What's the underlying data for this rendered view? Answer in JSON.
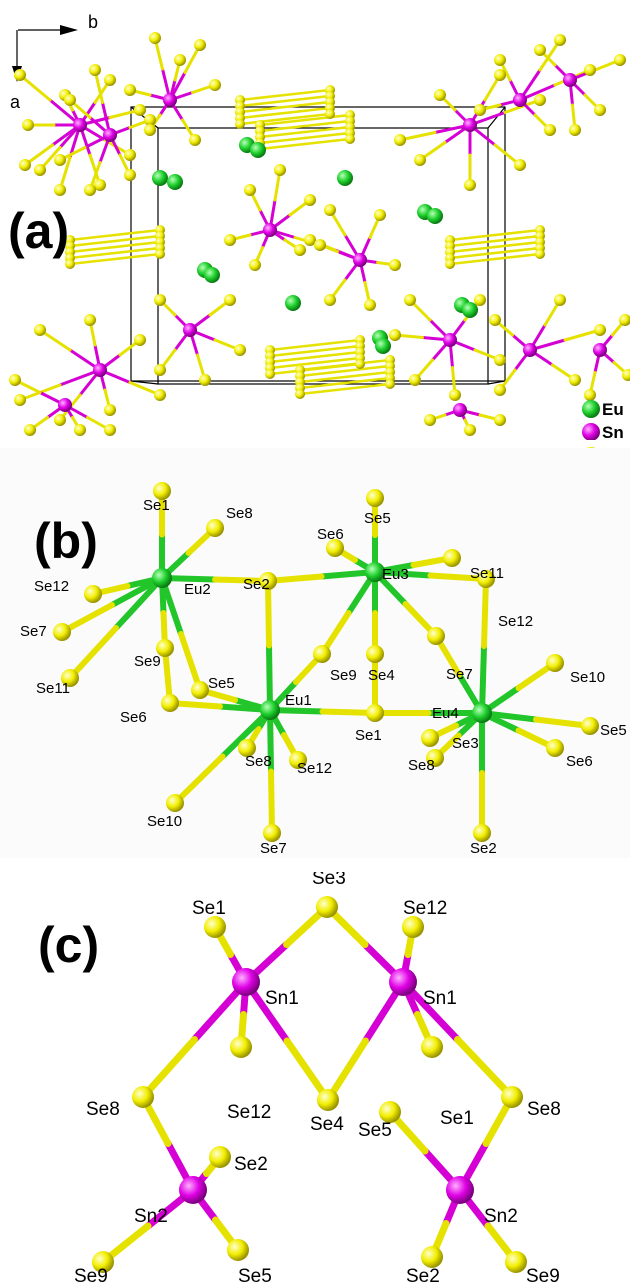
{
  "colors": {
    "eu": "#1fd12e",
    "sn": "#e000e6",
    "se": "#f2ee00",
    "bond_eu": "#22c52a",
    "bond_sn": "#d400d4",
    "bond_se": "#e6e200"
  },
  "panel_a": {
    "label": "(a)",
    "axis_b": "b",
    "axis_a": "a",
    "legend": [
      {
        "element": "Eu",
        "color": "#1fd12e"
      },
      {
        "element": "Sn",
        "color": "#e000e6"
      },
      {
        "element": "Se",
        "color": "#f2ee00"
      }
    ]
  },
  "panel_b": {
    "label": "(b)",
    "labels": {
      "se1_top": "Se1",
      "se8_top": "Se8",
      "se12_left": "Se12",
      "eu2": "Eu2",
      "se2_mid": "Se2",
      "se7_left": "Se7",
      "se9_left": "Se9",
      "se5_mid": "Se5",
      "se11_left": "Se11",
      "se6_left": "Se6",
      "eu1": "Eu1",
      "se9_mid": "Se9",
      "se4_mid": "Se4",
      "se6_top": "Se6",
      "se5_top": "Se5",
      "eu3": "Eu3",
      "se11_right": "Se11",
      "se12_right": "Se12",
      "se7_right": "Se7",
      "eu4": "Eu4",
      "se10_right": "Se10",
      "se5_right": "Se5",
      "se1_mid": "Se1",
      "se3": "Se3",
      "se8_right": "Se8",
      "se6_right": "Se6",
      "se8_bot": "Se8",
      "se12_bot": "Se12",
      "se10_left": "Se10",
      "se7_bot": "Se7",
      "se2_bot": "Se2"
    }
  },
  "panel_c": {
    "label": "(c)",
    "labels": {
      "se3": "Se3",
      "se1_left": "Se1",
      "se12_top": "Se12",
      "sn1_left": "Sn1",
      "sn1_right": "Sn1",
      "se8_left": "Se8",
      "se12_bot": "Se12",
      "se4": "Se4",
      "se5_right": "Se5",
      "se1_right": "Se1",
      "se8_right": "Se8",
      "se2_left": "Se2",
      "sn2_left": "Sn2",
      "sn2_right": "Sn2",
      "se9_left": "Se9",
      "se5_left": "Se5",
      "se2_right": "Se2",
      "se9_right": "Se9"
    }
  }
}
